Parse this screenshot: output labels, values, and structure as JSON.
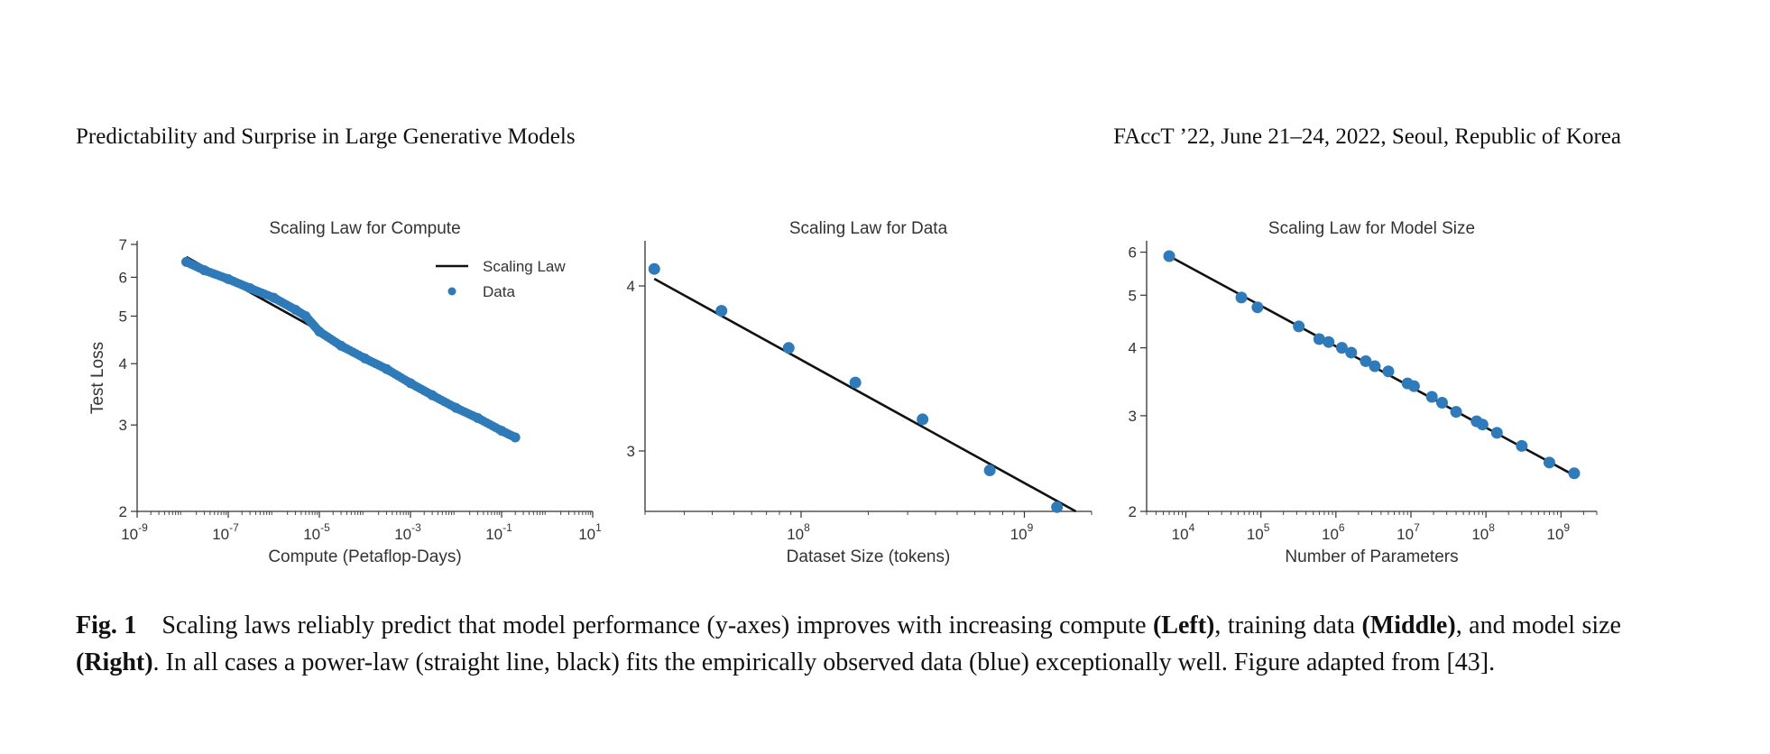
{
  "header": {
    "left": "Predictability and Surprise in Large Generative Models",
    "right": "FAccT ’22, June 21–24, 2022, Seoul, Republic of Korea"
  },
  "caption": {
    "label": "Fig. 1",
    "t1": "Scaling laws reliably predict that model performance (y-axes) improves with increasing compute ",
    "b1": "(Left)",
    "t2": ", training data ",
    "b2": "(Middle)",
    "t3": ", and model size ",
    "b3": "(Right)",
    "t4": ". In all cases a power-law (straight line, black) fits the empirically observed data (blue) exceptionally well. Figure adapted from [43]."
  },
  "colors": {
    "data": "#2f7ab9",
    "line": "#111111"
  },
  "chart_data": [
    {
      "type": "scatter",
      "title": "Scaling Law for Compute",
      "xlabel": "Compute (Petaflop-Days)",
      "ylabel": "Test Loss",
      "xscale": "log",
      "yscale": "log",
      "xlim": [
        1e-09,
        10
      ],
      "ylim": [
        2,
        7
      ],
      "xticks": [
        {
          "base": "10",
          "exp": "-9"
        },
        {
          "base": "10",
          "exp": "-7"
        },
        {
          "base": "10",
          "exp": "-5"
        },
        {
          "base": "10",
          "exp": "-3"
        },
        {
          "base": "10",
          "exp": "-1"
        },
        {
          "base": "10",
          "exp": "1"
        }
      ],
      "yticks": [
        "2",
        "3",
        "4",
        "5",
        "6",
        "7"
      ],
      "legend": [
        "Scaling Law",
        "Data"
      ],
      "legend_position": "top-right",
      "line": {
        "x": [
          1.2e-08,
          0.2
        ],
        "y": [
          6.6,
          2.8
        ]
      },
      "series": [
        {
          "x": [
            1.2e-08,
            3e-08,
            1e-07,
            3e-07,
            1e-06,
            3e-06,
            5e-06,
            1e-05,
            3e-05,
            0.0001,
            0.0003,
            0.001,
            0.003,
            0.01,
            0.03,
            0.1,
            0.2
          ],
          "y": [
            6.45,
            6.2,
            5.95,
            5.7,
            5.45,
            5.15,
            5.0,
            4.65,
            4.35,
            4.1,
            3.9,
            3.65,
            3.45,
            3.25,
            3.1,
            2.92,
            2.83
          ]
        }
      ]
    },
    {
      "type": "scatter",
      "title": "Scaling Law for Data",
      "xlabel": "Dataset Size (tokens)",
      "xscale": "log",
      "yscale": "log",
      "xlim": [
        20000000.0,
        2000000000.0
      ],
      "ylim": [
        2.7,
        4.3
      ],
      "xticks": [
        {
          "base": "10",
          "exp": "8"
        },
        {
          "base": "10",
          "exp": "9"
        }
      ],
      "yticks": [
        "3",
        "4"
      ],
      "line": {
        "x": [
          22000000.0,
          1700000000.0
        ],
        "y": [
          4.05,
          2.7
        ]
      },
      "series": [
        {
          "x": [
            22000000.0,
            44000000.0,
            88000000.0,
            175000000.0,
            350000000.0,
            700000000.0,
            1400000000.0
          ],
          "y": [
            4.12,
            3.83,
            3.59,
            3.38,
            3.17,
            2.9,
            2.72
          ]
        }
      ]
    },
    {
      "type": "scatter",
      "title": "Scaling Law for Model Size",
      "xlabel": "Number of Parameters",
      "xscale": "log",
      "yscale": "log",
      "xlim": [
        3000.0,
        3000000000.0
      ],
      "ylim": [
        2,
        6.2
      ],
      "xticks": [
        {
          "base": "10",
          "exp": "4"
        },
        {
          "base": "10",
          "exp": "5"
        },
        {
          "base": "10",
          "exp": "6"
        },
        {
          "base": "10",
          "exp": "7"
        },
        {
          "base": "10",
          "exp": "8"
        },
        {
          "base": "10",
          "exp": "9"
        }
      ],
      "yticks": [
        "2",
        "3",
        "4",
        "5",
        "6"
      ],
      "line": {
        "x": [
          6000.0,
          1500000000.0
        ],
        "y": [
          5.9,
          2.33
        ]
      },
      "series": [
        {
          "x": [
            6000.0,
            55000.0,
            90000.0,
            320000.0,
            600000.0,
            800000.0,
            1200000.0,
            1600000.0,
            2500000.0,
            3300000.0,
            5000000.0,
            9000000.0,
            11000000.0,
            19000000.0,
            26000000.0,
            40000000.0,
            75000000.0,
            90000000.0,
            140000000.0,
            300000000.0,
            700000000.0,
            1500000000.0
          ],
          "y": [
            5.9,
            4.95,
            4.75,
            4.38,
            4.15,
            4.1,
            4.0,
            3.92,
            3.78,
            3.7,
            3.62,
            3.44,
            3.4,
            3.25,
            3.17,
            3.05,
            2.93,
            2.89,
            2.79,
            2.64,
            2.46,
            2.35
          ]
        }
      ]
    }
  ]
}
